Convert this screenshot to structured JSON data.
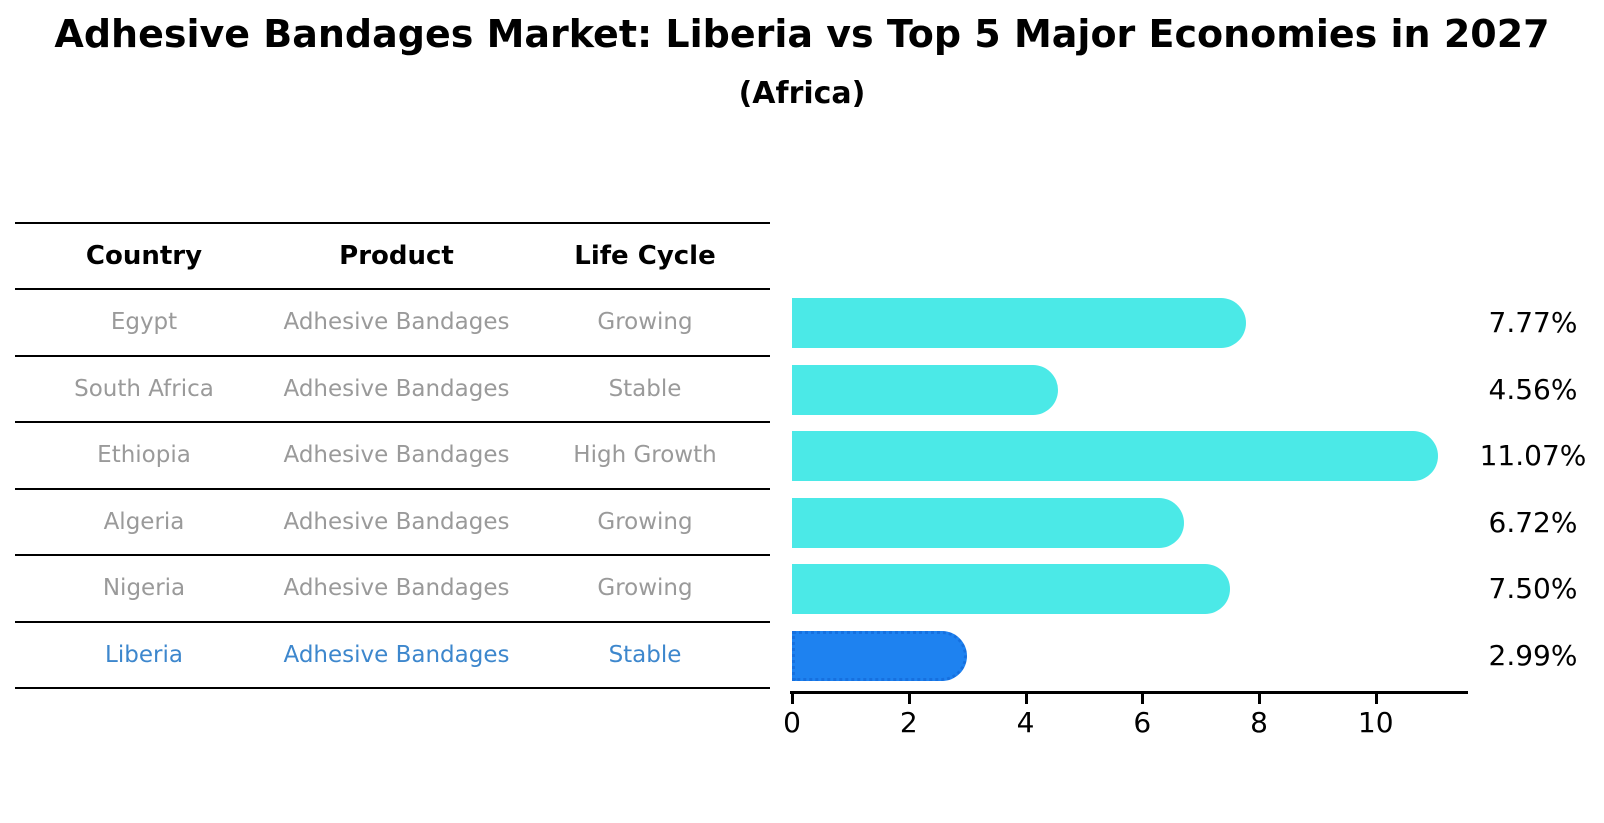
{
  "title": "Adhesive Bandages Market: Liberia vs Top 5 Major Economies in 2027",
  "subtitle": "(Africa)",
  "table": {
    "headers": [
      "Country",
      "Product",
      "Life Cycle"
    ],
    "rows": [
      {
        "country": "Egypt",
        "product": "Adhesive Bandages",
        "life_cycle": "Growing",
        "highlight": false
      },
      {
        "country": "South Africa",
        "product": "Adhesive Bandages",
        "life_cycle": "Stable",
        "highlight": false
      },
      {
        "country": "Ethiopia",
        "product": "Adhesive Bandages",
        "life_cycle": "High Growth",
        "highlight": false
      },
      {
        "country": "Algeria",
        "product": "Adhesive Bandages",
        "life_cycle": "Growing",
        "highlight": false
      },
      {
        "country": "Nigeria",
        "product": "Adhesive Bandages",
        "life_cycle": "Growing",
        "highlight": false
      },
      {
        "country": "Liberia",
        "product": "Adhesive Bandages",
        "life_cycle": "Stable",
        "highlight": true
      }
    ]
  },
  "chart_data": {
    "type": "bar",
    "orientation": "horizontal",
    "title": "Adhesive Bandages Market: Liberia vs Top 5 Major Economies in 2027",
    "subtitle": "(Africa)",
    "categories": [
      "Egypt",
      "South Africa",
      "Ethiopia",
      "Algeria",
      "Nigeria",
      "Liberia"
    ],
    "values": [
      7.77,
      4.56,
      11.07,
      6.72,
      7.5,
      2.99
    ],
    "value_labels": [
      "7.77%",
      "4.56%",
      "11.07%",
      "6.72%",
      "7.50%",
      "2.99%"
    ],
    "xticks": [
      0,
      2,
      4,
      6,
      8,
      10
    ],
    "xtick_labels": [
      "0",
      "2",
      "4",
      "6",
      "8",
      "10"
    ],
    "xlim": [
      0,
      11.58
    ],
    "grid": false,
    "legend": false,
    "bar_color": "#4BE9E7",
    "highlight_bar_color": "#1E82F0",
    "highlight_index": 5,
    "highlight_text_color": "#3D87CD"
  }
}
